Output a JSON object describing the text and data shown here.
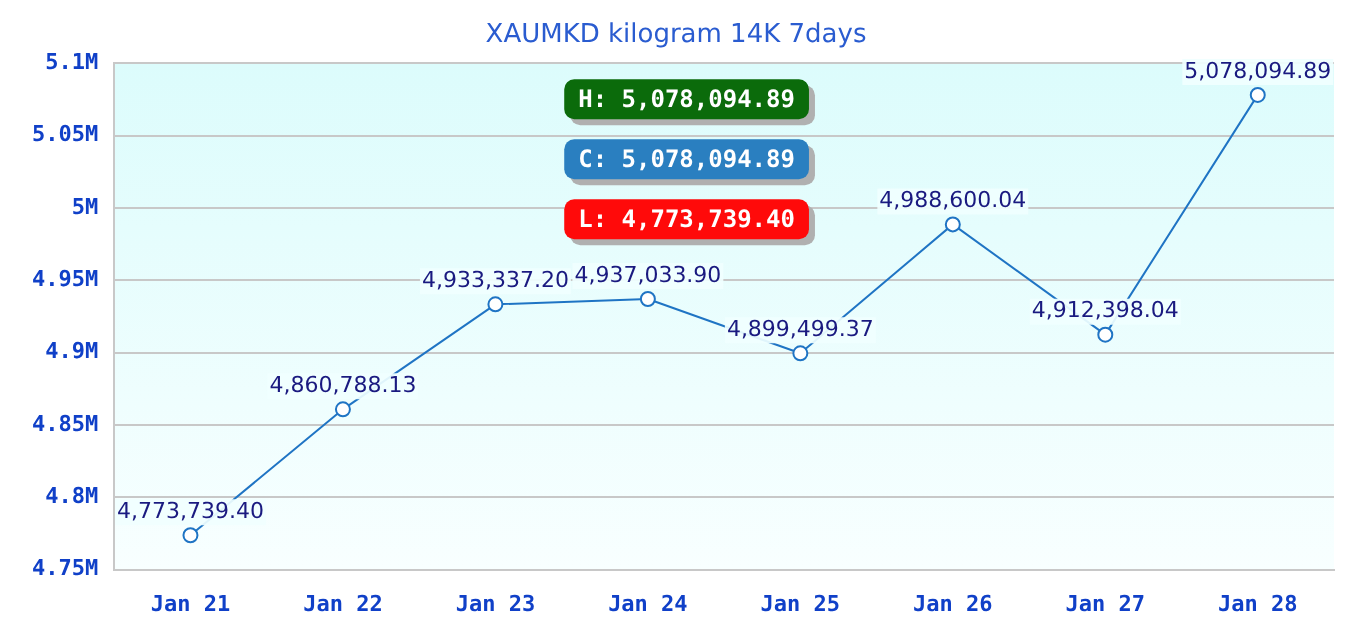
{
  "chart_data": {
    "type": "line",
    "title": "XAUMKD kilogram 14K 7days",
    "categories": [
      "Jan 21",
      "Jan 22",
      "Jan 23",
      "Jan 24",
      "Jan 25",
      "Jan 26",
      "Jan 27",
      "Jan 28"
    ],
    "series": [
      {
        "color": "#1f74c4",
        "values": [
          4773739.4,
          4860788.13,
          4933337.2,
          4937033.9,
          4899499.37,
          4988600.04,
          4912398.04,
          5078094.89
        ],
        "value_labels": [
          "4,773,739.40",
          "4,860,788.13",
          "4,933,337.20",
          "4,937,033.90",
          "4,899,499.37",
          "4,988,600.04",
          "4,912,398.04",
          "5,078,094.89"
        ]
      }
    ],
    "ylim": [
      4750000,
      5100000
    ],
    "yticks": [
      {
        "value": 4750000,
        "label": "4.75M"
      },
      {
        "value": 4800000,
        "label": "4.8M"
      },
      {
        "value": 4850000,
        "label": "4.85M"
      },
      {
        "value": 4900000,
        "label": "4.9M"
      },
      {
        "value": 4950000,
        "label": "4.95M"
      },
      {
        "value": 5000000,
        "label": "5M"
      },
      {
        "value": 5050000,
        "label": "5.05M"
      },
      {
        "value": 5100000,
        "label": "5.1M"
      }
    ],
    "grid": "y",
    "marker": "circle",
    "line_style": "solid",
    "legend": false,
    "annotations": [
      "H: 5,078,094.89",
      "C: 5,078,094.89",
      "L: 4,773,739.40"
    ]
  }
}
